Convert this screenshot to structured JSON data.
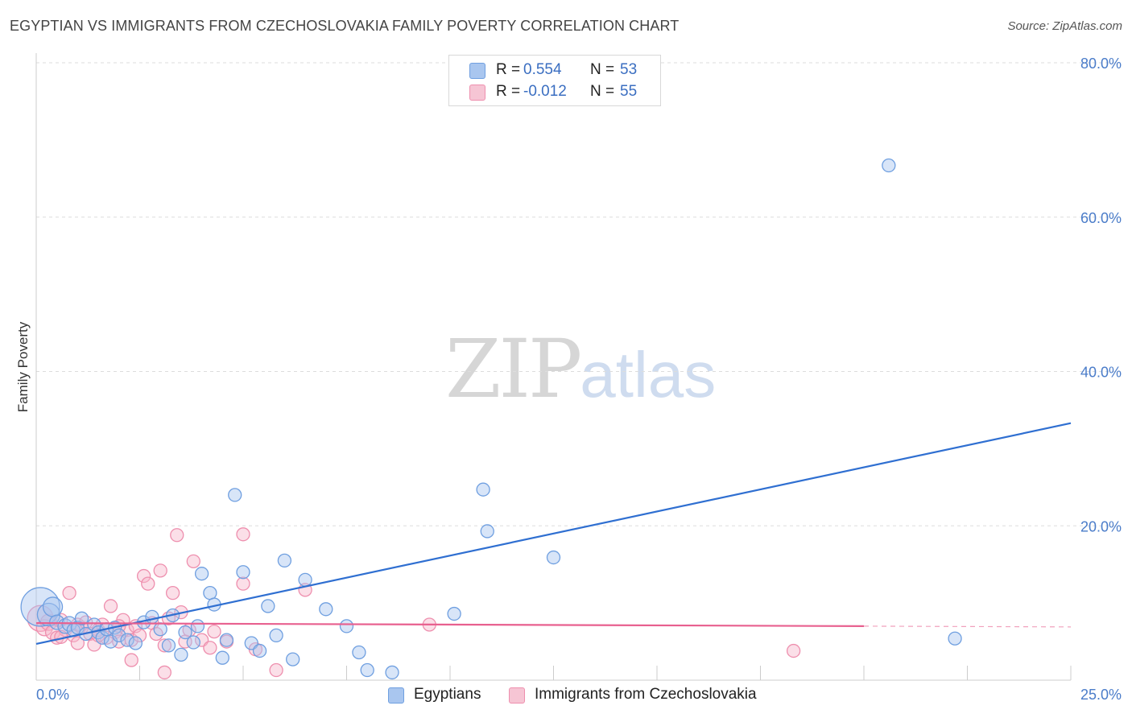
{
  "header": {
    "title": "EGYPTIAN VS IMMIGRANTS FROM CZECHOSLOVAKIA FAMILY POVERTY CORRELATION CHART",
    "source": "Source: ZipAtlas.com"
  },
  "watermark": {
    "zip": "ZIP",
    "atlas": "atlas"
  },
  "legend_top": {
    "rows": [
      {
        "r_label": "R =",
        "r_value": "0.554",
        "n_label": "N =",
        "n_value": "53"
      },
      {
        "r_label": "R =",
        "r_value": "-0.012",
        "n_label": "N =",
        "n_value": "55"
      }
    ]
  },
  "legend_bottom": {
    "items": [
      "Egyptians",
      "Immigrants from Czechoslovakia"
    ]
  },
  "colors": {
    "blue_fill": "#a9c6ef",
    "blue_stroke": "#6f9fe0",
    "blue_line": "#2f6fd1",
    "pink_fill": "#f6b8cb",
    "pink_stroke": "#ee8fae",
    "pink_line": "#e8608f",
    "tick": "#4a7cc9",
    "grid": "#dddddd"
  },
  "chart_data": {
    "type": "scatter",
    "title": "EGYPTIAN VS IMMIGRANTS FROM CZECHOSLOVAKIA FAMILY POVERTY CORRELATION CHART",
    "xlabel": "",
    "ylabel": "Family Poverty",
    "xlim": [
      0,
      25
    ],
    "ylim": [
      0,
      80
    ],
    "x_tick_labels": [
      {
        "value": 0,
        "label": "0.0%"
      },
      {
        "value": 25,
        "label": "25.0%"
      }
    ],
    "y_tick_labels": [
      {
        "value": 20,
        "label": "20.0%"
      },
      {
        "value": 40,
        "label": "40.0%"
      },
      {
        "value": 60,
        "label": "60.0%"
      },
      {
        "value": 80,
        "label": "80.0%"
      }
    ],
    "x_minor_ticks": [
      2.5,
      5,
      7.5,
      10,
      12.5,
      15,
      17.5,
      20,
      22.5,
      25
    ],
    "series": [
      {
        "name": "Egyptians",
        "r": 0.554,
        "n": 53,
        "trend": {
          "x": [
            0,
            25
          ],
          "y": [
            4.7,
            33.3
          ]
        },
        "points": [
          {
            "x": 0.1,
            "y": 9.5,
            "s": 24
          },
          {
            "x": 0.3,
            "y": 8.5,
            "s": 14
          },
          {
            "x": 0.4,
            "y": 9.5,
            "s": 12
          },
          {
            "x": 0.5,
            "y": 7.5,
            "s": 9
          },
          {
            "x": 0.7,
            "y": 7.0,
            "s": 9
          },
          {
            "x": 0.8,
            "y": 7.3,
            "s": 9
          },
          {
            "x": 0.9,
            "y": 6.5,
            "s": 8
          },
          {
            "x": 1.0,
            "y": 6.8,
            "s": 8
          },
          {
            "x": 1.1,
            "y": 8.0,
            "s": 8
          },
          {
            "x": 1.2,
            "y": 6.0,
            "s": 8
          },
          {
            "x": 1.4,
            "y": 7.2,
            "s": 8
          },
          {
            "x": 1.5,
            "y": 6.2,
            "s": 8
          },
          {
            "x": 1.6,
            "y": 5.5,
            "s": 8
          },
          {
            "x": 1.7,
            "y": 6.6,
            "s": 8
          },
          {
            "x": 1.8,
            "y": 5.0,
            "s": 8
          },
          {
            "x": 1.9,
            "y": 6.8,
            "s": 8
          },
          {
            "x": 2.0,
            "y": 5.8,
            "s": 8
          },
          {
            "x": 2.2,
            "y": 5.2,
            "s": 8
          },
          {
            "x": 2.4,
            "y": 4.8,
            "s": 8
          },
          {
            "x": 2.6,
            "y": 7.5,
            "s": 8
          },
          {
            "x": 2.8,
            "y": 8.2,
            "s": 8
          },
          {
            "x": 3.0,
            "y": 6.6,
            "s": 8
          },
          {
            "x": 3.2,
            "y": 4.5,
            "s": 8
          },
          {
            "x": 3.3,
            "y": 8.4,
            "s": 8
          },
          {
            "x": 3.5,
            "y": 3.3,
            "s": 8
          },
          {
            "x": 3.6,
            "y": 6.2,
            "s": 8
          },
          {
            "x": 3.8,
            "y": 4.9,
            "s": 8
          },
          {
            "x": 3.9,
            "y": 7.0,
            "s": 8
          },
          {
            "x": 4.0,
            "y": 13.8,
            "s": 8
          },
          {
            "x": 4.2,
            "y": 11.3,
            "s": 8
          },
          {
            "x": 4.3,
            "y": 9.8,
            "s": 8
          },
          {
            "x": 4.5,
            "y": 2.9,
            "s": 8
          },
          {
            "x": 4.6,
            "y": 5.2,
            "s": 8
          },
          {
            "x": 4.8,
            "y": 24.0,
            "s": 8
          },
          {
            "x": 5.0,
            "y": 14.0,
            "s": 8
          },
          {
            "x": 5.2,
            "y": 4.8,
            "s": 8
          },
          {
            "x": 5.4,
            "y": 3.8,
            "s": 8
          },
          {
            "x": 5.6,
            "y": 9.6,
            "s": 8
          },
          {
            "x": 5.8,
            "y": 5.8,
            "s": 8
          },
          {
            "x": 6.0,
            "y": 15.5,
            "s": 8
          },
          {
            "x": 6.2,
            "y": 2.7,
            "s": 8
          },
          {
            "x": 6.5,
            "y": 13.0,
            "s": 8
          },
          {
            "x": 7.0,
            "y": 9.2,
            "s": 8
          },
          {
            "x": 7.5,
            "y": 7.0,
            "s": 8
          },
          {
            "x": 7.8,
            "y": 3.6,
            "s": 8
          },
          {
            "x": 8.0,
            "y": 1.3,
            "s": 8
          },
          {
            "x": 8.6,
            "y": 1.0,
            "s": 8
          },
          {
            "x": 10.1,
            "y": 8.6,
            "s": 8
          },
          {
            "x": 10.8,
            "y": 24.7,
            "s": 8
          },
          {
            "x": 10.9,
            "y": 19.3,
            "s": 8
          },
          {
            "x": 12.5,
            "y": 15.9,
            "s": 8
          },
          {
            "x": 20.6,
            "y": 66.7,
            "s": 8
          },
          {
            "x": 22.2,
            "y": 5.4,
            "s": 8
          }
        ]
      },
      {
        "name": "Immigrants from Czechoslovakia",
        "r": -0.012,
        "n": 55,
        "trend": {
          "x": [
            0,
            20
          ],
          "y": [
            7.4,
            7.0
          ]
        },
        "trend_dashed": {
          "x": [
            20,
            25
          ],
          "y": [
            7.0,
            6.9
          ]
        },
        "points": [
          {
            "x": 0.1,
            "y": 8.0,
            "s": 16
          },
          {
            "x": 0.2,
            "y": 6.8,
            "s": 10
          },
          {
            "x": 0.3,
            "y": 7.5,
            "s": 10
          },
          {
            "x": 0.4,
            "y": 6.2,
            "s": 9
          },
          {
            "x": 0.5,
            "y": 5.5,
            "s": 8
          },
          {
            "x": 0.6,
            "y": 7.8,
            "s": 8
          },
          {
            "x": 0.7,
            "y": 6.5,
            "s": 8
          },
          {
            "x": 0.8,
            "y": 11.3,
            "s": 8
          },
          {
            "x": 0.9,
            "y": 5.8,
            "s": 8
          },
          {
            "x": 1.0,
            "y": 7.2,
            "s": 8
          },
          {
            "x": 1.1,
            "y": 6.8,
            "s": 8
          },
          {
            "x": 1.2,
            "y": 7.5,
            "s": 8
          },
          {
            "x": 1.3,
            "y": 6.0,
            "s": 8
          },
          {
            "x": 1.4,
            "y": 4.6,
            "s": 8
          },
          {
            "x": 1.5,
            "y": 6.5,
            "s": 8
          },
          {
            "x": 1.6,
            "y": 7.2,
            "s": 8
          },
          {
            "x": 1.7,
            "y": 5.5,
            "s": 8
          },
          {
            "x": 1.8,
            "y": 9.6,
            "s": 8
          },
          {
            "x": 1.9,
            "y": 6.2,
            "s": 8
          },
          {
            "x": 2.0,
            "y": 5.0,
            "s": 8
          },
          {
            "x": 2.1,
            "y": 7.8,
            "s": 8
          },
          {
            "x": 2.2,
            "y": 6.5,
            "s": 8
          },
          {
            "x": 2.3,
            "y": 5.2,
            "s": 8
          },
          {
            "x": 2.4,
            "y": 7.0,
            "s": 8
          },
          {
            "x": 2.5,
            "y": 5.8,
            "s": 8
          },
          {
            "x": 2.6,
            "y": 13.5,
            "s": 8
          },
          {
            "x": 2.7,
            "y": 12.5,
            "s": 8
          },
          {
            "x": 2.8,
            "y": 7.4,
            "s": 8
          },
          {
            "x": 2.9,
            "y": 6.0,
            "s": 8
          },
          {
            "x": 3.0,
            "y": 14.2,
            "s": 8
          },
          {
            "x": 3.1,
            "y": 4.5,
            "s": 8
          },
          {
            "x": 3.2,
            "y": 8.0,
            "s": 8
          },
          {
            "x": 3.3,
            "y": 11.3,
            "s": 8
          },
          {
            "x": 3.4,
            "y": 18.8,
            "s": 8
          },
          {
            "x": 3.5,
            "y": 8.8,
            "s": 8
          },
          {
            "x": 3.6,
            "y": 5.0,
            "s": 8
          },
          {
            "x": 3.7,
            "y": 6.5,
            "s": 8
          },
          {
            "x": 3.8,
            "y": 15.4,
            "s": 8
          },
          {
            "x": 4.0,
            "y": 5.2,
            "s": 8
          },
          {
            "x": 4.2,
            "y": 4.2,
            "s": 8
          },
          {
            "x": 4.3,
            "y": 6.3,
            "s": 8
          },
          {
            "x": 4.6,
            "y": 5.0,
            "s": 8
          },
          {
            "x": 5.0,
            "y": 18.9,
            "s": 8
          },
          {
            "x": 5.0,
            "y": 12.5,
            "s": 8
          },
          {
            "x": 5.3,
            "y": 4.0,
            "s": 8
          },
          {
            "x": 2.3,
            "y": 2.6,
            "s": 8
          },
          {
            "x": 3.1,
            "y": 1.0,
            "s": 8
          },
          {
            "x": 5.8,
            "y": 1.3,
            "s": 8
          },
          {
            "x": 6.5,
            "y": 11.7,
            "s": 8
          },
          {
            "x": 9.5,
            "y": 7.2,
            "s": 8
          },
          {
            "x": 18.3,
            "y": 3.8,
            "s": 8
          },
          {
            "x": 1.5,
            "y": 5.8,
            "s": 8
          },
          {
            "x": 1.0,
            "y": 4.8,
            "s": 8
          },
          {
            "x": 2.0,
            "y": 7.0,
            "s": 8
          },
          {
            "x": 0.6,
            "y": 5.6,
            "s": 8
          }
        ]
      }
    ]
  }
}
